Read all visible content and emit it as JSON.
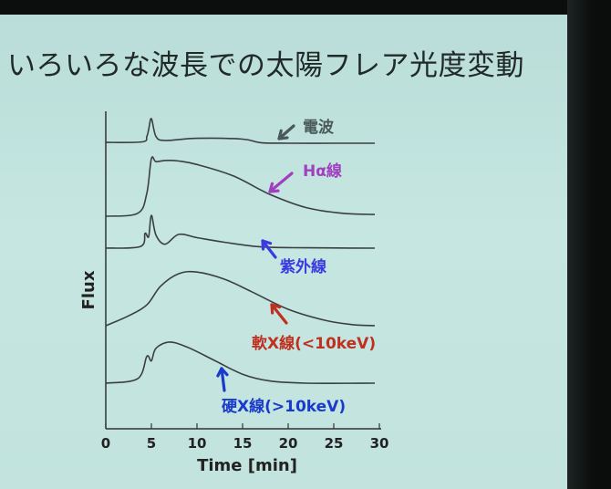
{
  "slide": {
    "title": "いろいろな波長での太陽フレア光度変動"
  },
  "chart_data": {
    "type": "line",
    "title": "いろいろな波長での太陽フレア光度変動",
    "xlabel": "Time [min]",
    "ylabel": "Flux",
    "xlim": [
      0,
      30
    ],
    "xticks": [
      0,
      5,
      10,
      15,
      20,
      25,
      30
    ],
    "grid": false,
    "series": [
      {
        "name": "電波",
        "color": "#4a5a5a",
        "x": [
          0,
          4,
          4.5,
          4.7,
          5.0,
          5.5,
          6.5,
          10,
          15,
          17,
          20,
          25,
          29.5
        ],
        "y": [
          0.03,
          0.05,
          0.25,
          0.5,
          0.9,
          0.25,
          0.1,
          0.18,
          0.15,
          0.02,
          0.0,
          0.0,
          0.0
        ]
      },
      {
        "name": "Hα線",
        "color": "#a040c0",
        "x": [
          0,
          3.5,
          4.5,
          5.0,
          5.5,
          6.5,
          8,
          10,
          14,
          18,
          22,
          26,
          29.5
        ],
        "y": [
          0.0,
          0.05,
          0.4,
          1.0,
          0.95,
          0.97,
          0.96,
          0.9,
          0.7,
          0.38,
          0.15,
          0.05,
          0.03
        ]
      },
      {
        "name": "紫外線",
        "color": "#3a3ae0",
        "x": [
          0,
          3.8,
          4.3,
          4.7,
          5.0,
          5.5,
          6.5,
          8,
          10,
          13,
          17,
          22,
          29.5
        ],
        "y": [
          0.0,
          0.05,
          0.45,
          0.35,
          1.0,
          0.4,
          0.12,
          0.42,
          0.32,
          0.18,
          0.04,
          0.01,
          0.0
        ]
      },
      {
        "name": "軟X線(<10keV)",
        "color": "#c03020",
        "x": [
          0,
          2.5,
          4.5,
          6,
          8,
          10,
          13,
          16,
          20,
          24,
          27,
          29.5
        ],
        "y": [
          0.0,
          0.18,
          0.38,
          0.72,
          0.95,
          0.98,
          0.85,
          0.62,
          0.3,
          0.1,
          0.02,
          0.0
        ]
      },
      {
        "name": "硬X線(>10keV)",
        "color": "#1a3acc",
        "x": [
          0,
          3.5,
          4.5,
          5.0,
          5.5,
          7,
          9,
          12,
          15,
          18,
          22,
          29.5
        ],
        "y": [
          0.0,
          0.1,
          0.6,
          0.5,
          0.78,
          0.92,
          0.8,
          0.5,
          0.2,
          0.05,
          0.0,
          0.0
        ]
      }
    ]
  }
}
